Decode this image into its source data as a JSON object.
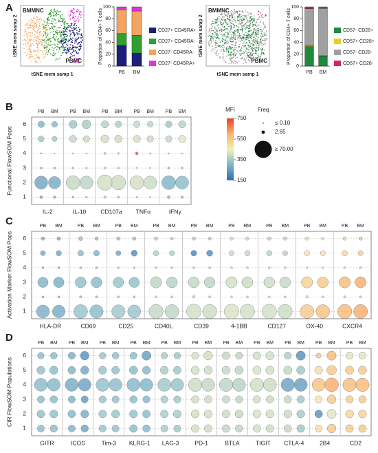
{
  "chart_data": [
    {
      "type": "stacked-bar",
      "panel_label": "A",
      "tsne": {
        "labels": [
          "BMMNC",
          "PBMC"
        ],
        "label_colors": [
          "#1fb3b3",
          "#8a1fc4"
        ],
        "xlabel": "tSNE mem samp 1",
        "ylabel": "tSNE mem samp 2"
      },
      "ylabel": "Proportion of CD4+ T cells",
      "categories": [
        "PB",
        "BM"
      ],
      "ylim": [
        0,
        100
      ],
      "yticks": [
        0,
        20,
        40,
        60,
        80,
        100
      ],
      "series": [
        {
          "name": "CD27+ CD45RA+",
          "color": "#1b1f7a",
          "values": [
            35,
            22
          ]
        },
        {
          "name": "CD27+ CD45RA-",
          "color": "#2fa02f",
          "values": [
            20,
            30
          ]
        },
        {
          "name": "CD27- CD45RA-",
          "color": "#f4a460",
          "values": [
            40,
            41
          ]
        },
        {
          "name": "CD27- CD45RA+",
          "color": "#e233d8",
          "values": [
            5,
            7
          ]
        }
      ]
    },
    {
      "type": "stacked-bar",
      "tsne": {
        "labels": [
          "BMMNC",
          "PBMC"
        ],
        "label_colors": [
          "#1fb3b3",
          "#8a1fc4"
        ],
        "xlabel": "tSNE mem samp 1",
        "ylabel": "tSNE mem samp 2"
      },
      "ylabel": "Proportion of CD4+ T cells",
      "categories": [
        "PB",
        "BM"
      ],
      "ylim": [
        0,
        100
      ],
      "yticks": [
        0,
        20,
        40,
        60,
        80,
        100
      ],
      "series": [
        {
          "name": "CD57- CD28+",
          "color": "#1e8a3c",
          "values": [
            33,
            17
          ]
        },
        {
          "name": "CD57+ CD28+",
          "color": "#e6d21e",
          "values": [
            1,
            0.5
          ]
        },
        {
          "name": "CD57- CD28-",
          "color": "#a0a0a0",
          "values": [
            63,
            80
          ]
        },
        {
          "name": "CD57+ CD28-",
          "color": "#d6245a",
          "values": [
            3,
            2.5
          ]
        }
      ]
    },
    {
      "type": "bubble",
      "panel_label": "B",
      "ylabel": "Functional FlowSOM Pops",
      "markers": [
        "IL-2",
        "IL-10",
        "CD107a",
        "TNFα",
        "IFNγ"
      ],
      "samples": [
        "PB",
        "BM"
      ],
      "ylim": [
        0.5,
        6.5
      ],
      "yticks": [
        1,
        2,
        3,
        4,
        5,
        6
      ],
      "freq": [
        [
          2,
          40,
          1,
          0.5,
          8,
          10
        ],
        [
          1.5,
          35,
          1,
          0.3,
          6,
          8
        ],
        [
          1,
          45,
          0.8,
          0.5,
          12,
          15
        ],
        [
          0.8,
          40,
          0.7,
          0.4,
          10,
          18
        ],
        [
          1.5,
          55,
          1.2,
          1,
          15,
          12
        ],
        [
          1.2,
          50,
          1,
          0.8,
          13,
          10
        ],
        [
          0.8,
          45,
          0.6,
          2,
          12,
          10
        ],
        [
          0.5,
          40,
          0.5,
          0.5,
          10,
          8
        ],
        [
          2,
          45,
          1,
          0.5,
          10,
          10
        ],
        [
          1.5,
          40,
          1,
          0.4,
          12,
          12
        ]
      ],
      "mfi": [
        [
          260,
          250,
          300,
          320,
          330,
          280
        ],
        [
          270,
          260,
          300,
          310,
          340,
          290
        ],
        [
          330,
          380,
          350,
          360,
          380,
          330
        ],
        [
          340,
          370,
          350,
          360,
          390,
          340
        ],
        [
          360,
          400,
          380,
          380,
          400,
          360
        ],
        [
          350,
          390,
          370,
          370,
          390,
          350
        ],
        [
          380,
          400,
          420,
          740,
          400,
          380
        ],
        [
          370,
          390,
          400,
          650,
          390,
          370
        ],
        [
          300,
          280,
          330,
          340,
          380,
          330
        ],
        [
          320,
          300,
          340,
          350,
          420,
          360
        ]
      ],
      "mfi_legend": {
        "title": "MFI",
        "lim": [
          150,
          750
        ],
        "ticks": [
          150,
          350,
          550,
          750
        ],
        "colors": [
          "#2f6fb0",
          "#7fb6c6",
          "#f3efb8",
          "#f7b46a",
          "#e8402e"
        ]
      },
      "freq_legend": {
        "title": "Freq",
        "entries": [
          {
            "value": 0.1,
            "label": "≤ 0.10"
          },
          2.65,
          {
            "value": 70,
            "label": "≥ 70.00"
          }
        ]
      }
    },
    {
      "type": "bubble",
      "panel_label": "C",
      "ylabel": "Activation Marker FlowSOM Pops",
      "markers": [
        "HLA-DR",
        "CD69",
        "CD25",
        "CD40L",
        "CD39",
        "4-1BB",
        "CD127",
        "OX-40",
        "CXCR4"
      ],
      "samples": [
        "PB",
        "BM"
      ],
      "ylim": [
        0.5,
        6.5
      ],
      "yticks": [
        1,
        2,
        3,
        4,
        5,
        6
      ],
      "freq": [
        [
          40,
          1,
          25,
          1,
          6,
          3
        ],
        [
          38,
          1,
          26,
          1,
          7,
          3
        ],
        [
          45,
          1.2,
          28,
          1,
          8,
          4
        ],
        [
          42,
          1,
          27,
          1,
          8,
          3
        ],
        [
          42,
          1,
          26,
          0.8,
          6,
          3
        ],
        [
          40,
          1,
          25,
          0.8,
          9,
          3
        ],
        [
          48,
          1,
          30,
          1,
          7,
          3
        ],
        [
          45,
          1,
          28,
          1,
          6,
          2
        ],
        [
          50,
          1.5,
          28,
          1,
          8,
          3
        ],
        [
          47,
          1,
          27,
          1,
          9,
          2.5
        ],
        [
          52,
          1,
          30,
          1,
          6,
          3
        ],
        [
          50,
          1,
          29,
          1,
          7,
          3
        ],
        [
          50,
          1,
          28,
          1,
          7,
          3
        ],
        [
          48,
          1,
          28,
          1,
          6,
          3
        ],
        [
          45,
          1.5,
          30,
          1,
          7,
          3
        ],
        [
          44,
          1,
          28,
          1,
          6,
          2
        ],
        [
          48,
          1.2,
          30,
          1,
          7,
          3
        ],
        [
          46,
          1,
          29,
          1,
          6,
          3
        ]
      ],
      "mfi": [
        [
          270,
          300,
          280,
          300,
          260,
          280
        ],
        [
          260,
          300,
          270,
          300,
          250,
          270
        ],
        [
          320,
          330,
          310,
          330,
          300,
          320
        ],
        [
          300,
          320,
          300,
          320,
          280,
          310
        ],
        [
          330,
          340,
          320,
          340,
          250,
          330
        ],
        [
          320,
          330,
          310,
          330,
          180,
          320
        ],
        [
          380,
          390,
          370,
          380,
          360,
          370
        ],
        [
          370,
          380,
          360,
          380,
          350,
          360
        ],
        [
          400,
          380,
          380,
          380,
          170,
          360
        ],
        [
          390,
          370,
          370,
          370,
          190,
          350
        ],
        [
          410,
          400,
          400,
          400,
          390,
          400
        ],
        [
          400,
          390,
          390,
          390,
          380,
          390
        ],
        [
          400,
          390,
          390,
          380,
          370,
          380
        ],
        [
          390,
          380,
          380,
          380,
          370,
          380
        ],
        [
          560,
          520,
          540,
          500,
          480,
          500
        ],
        [
          580,
          530,
          560,
          510,
          490,
          500
        ],
        [
          600,
          560,
          600,
          540,
          520,
          540
        ],
        [
          620,
          580,
          620,
          560,
          540,
          560
        ]
      ]
    },
    {
      "type": "bubble",
      "panel_label": "D",
      "ylabel": "CIR FlowSOM Populations",
      "markers": [
        "GITR",
        "ICOS",
        "Tim-3",
        "KLRG-1",
        "LAG-3",
        "PD-1",
        "BTLA",
        "TIGIT",
        "CTLA-4",
        "2B4",
        "CD2"
      ],
      "samples": [
        "PB",
        "BM"
      ],
      "ylim": [
        0.5,
        6.5
      ],
      "yticks": [
        1,
        2,
        3,
        4,
        5,
        6
      ],
      "freq": [
        [
          12,
          14,
          12,
          40,
          15,
          10
        ],
        [
          13,
          15,
          13,
          38,
          16,
          11
        ],
        [
          12,
          14,
          12,
          40,
          14,
          12
        ],
        [
          13,
          15,
          12,
          38,
          16,
          18
        ],
        [
          12,
          14,
          12,
          40,
          15,
          10
        ],
        [
          12,
          15,
          12,
          38,
          14,
          11
        ],
        [
          14,
          15,
          13,
          40,
          16,
          12
        ],
        [
          13,
          14,
          12,
          38,
          15,
          20
        ],
        [
          12,
          14,
          12,
          40,
          15,
          10
        ],
        [
          12,
          15,
          12,
          38,
          14,
          11
        ],
        [
          14,
          15,
          13,
          42,
          16,
          12
        ],
        [
          14,
          15,
          13,
          40,
          16,
          18
        ],
        [
          14,
          14,
          13,
          42,
          15,
          14
        ],
        [
          13,
          15,
          12,
          40,
          16,
          12
        ],
        [
          14,
          15,
          13,
          42,
          16,
          14
        ],
        [
          14,
          15,
          13,
          40,
          16,
          16
        ],
        [
          14,
          15,
          13,
          42,
          16,
          12
        ],
        [
          14,
          15,
          13,
          40,
          16,
          20
        ],
        [
          12,
          14,
          12,
          40,
          14,
          6
        ],
        [
          18,
          20,
          18,
          45,
          22,
          20
        ],
        [
          14,
          15,
          13,
          42,
          16,
          12
        ],
        [
          14,
          15,
          13,
          42,
          16,
          12
        ]
      ],
      "mfi": [
        [
          300,
          310,
          300,
          300,
          310,
          300
        ],
        [
          300,
          310,
          300,
          290,
          300,
          300
        ],
        [
          280,
          290,
          280,
          260,
          280,
          270
        ],
        [
          250,
          260,
          220,
          240,
          250,
          200
        ],
        [
          320,
          330,
          320,
          310,
          320,
          320
        ],
        [
          310,
          320,
          310,
          300,
          310,
          310
        ],
        [
          300,
          310,
          300,
          290,
          300,
          300
        ],
        [
          290,
          300,
          290,
          280,
          290,
          230
        ],
        [
          340,
          340,
          340,
          330,
          340,
          340
        ],
        [
          330,
          340,
          330,
          320,
          330,
          330
        ],
        [
          400,
          400,
          400,
          390,
          400,
          400
        ],
        [
          390,
          400,
          390,
          380,
          390,
          400
        ],
        [
          380,
          390,
          380,
          370,
          380,
          380
        ],
        [
          370,
          380,
          370,
          360,
          370,
          370
        ],
        [
          400,
          410,
          400,
          400,
          410,
          400
        ],
        [
          390,
          400,
          390,
          390,
          400,
          400
        ],
        [
          380,
          390,
          380,
          240,
          380,
          350
        ],
        [
          330,
          340,
          330,
          230,
          330,
          200
        ],
        [
          500,
          200,
          480,
          580,
          500,
          560
        ],
        [
          560,
          420,
          560,
          620,
          560,
          600
        ],
        [
          560,
          520,
          550,
          590,
          560,
          420
        ],
        [
          560,
          540,
          560,
          600,
          560,
          420
        ]
      ]
    }
  ]
}
